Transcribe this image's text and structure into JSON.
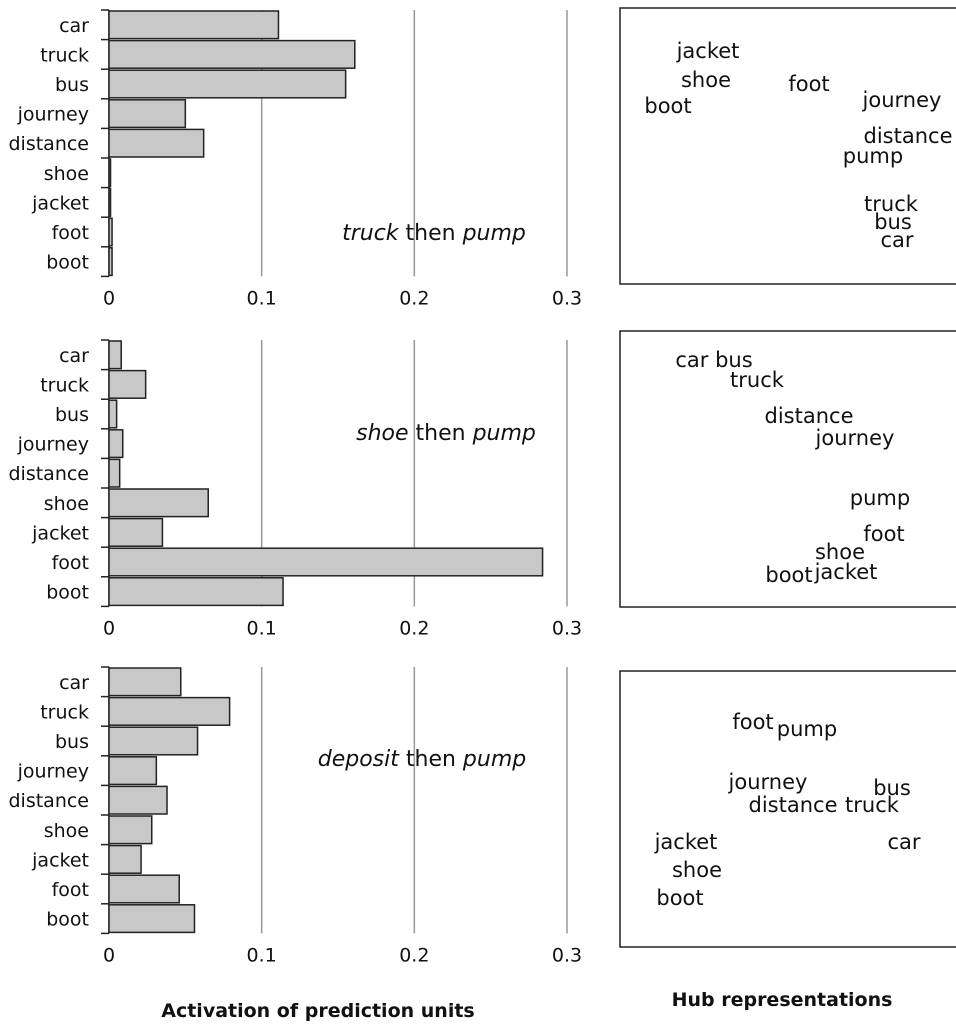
{
  "chart_data": [
    {
      "type": "bar",
      "orientation": "horizontal",
      "annotation": {
        "parts": [
          {
            "text": "truck",
            "italic": true
          },
          {
            "text": " then ",
            "italic": false
          },
          {
            "text": "pump",
            "italic": true
          }
        ]
      },
      "categories": [
        "car",
        "truck",
        "bus",
        "journey",
        "distance",
        "shoe",
        "jacket",
        "foot",
        "boot"
      ],
      "values": [
        0.111,
        0.161,
        0.155,
        0.05,
        0.062,
        0.001,
        0.001,
        0.002,
        0.002
      ],
      "xlim": [
        0,
        0.3
      ],
      "xticks": [
        "0",
        "0.1",
        "0.2",
        "0.3"
      ],
      "grid": "vertical",
      "hub": [
        {
          "text": "jacket",
          "highlight": false
        },
        {
          "text": "shoe",
          "highlight": false
        },
        {
          "text": "boot",
          "highlight": false
        },
        {
          "text": "foot",
          "highlight": false
        },
        {
          "text": "journey",
          "highlight": false
        },
        {
          "text": "distance",
          "highlight": false
        },
        {
          "text": "pump",
          "highlight": true
        },
        {
          "text": "truck",
          "highlight": false
        },
        {
          "text": "bus",
          "highlight": false
        },
        {
          "text": "car",
          "highlight": false
        }
      ]
    },
    {
      "type": "bar",
      "orientation": "horizontal",
      "annotation": {
        "parts": [
          {
            "text": "shoe",
            "italic": true
          },
          {
            "text": " then ",
            "italic": false
          },
          {
            "text": "pump",
            "italic": true
          }
        ]
      },
      "categories": [
        "car",
        "truck",
        "bus",
        "journey",
        "distance",
        "shoe",
        "jacket",
        "foot",
        "boot"
      ],
      "values": [
        0.008,
        0.024,
        0.005,
        0.009,
        0.007,
        0.065,
        0.035,
        0.284,
        0.114
      ],
      "xlim": [
        0,
        0.3
      ],
      "xticks": [
        "0",
        "0.1",
        "0.2",
        "0.3"
      ],
      "grid": "vertical",
      "hub": [
        {
          "text": "car bus",
          "highlight": false
        },
        {
          "text": "truck",
          "highlight": false
        },
        {
          "text": "distance",
          "highlight": false
        },
        {
          "text": "journey",
          "highlight": false
        },
        {
          "text": "pump",
          "highlight": true
        },
        {
          "text": "foot",
          "highlight": false
        },
        {
          "text": "shoe",
          "highlight": false
        },
        {
          "text": "jacket",
          "highlight": false
        },
        {
          "text": "boot",
          "highlight": false
        }
      ]
    },
    {
      "type": "bar",
      "orientation": "horizontal",
      "annotation": {
        "parts": [
          {
            "text": "deposit",
            "italic": true
          },
          {
            "text": " then ",
            "italic": false
          },
          {
            "text": "pump",
            "italic": true
          }
        ]
      },
      "categories": [
        "car",
        "truck",
        "bus",
        "journey",
        "distance",
        "shoe",
        "jacket",
        "foot",
        "boot"
      ],
      "values": [
        0.047,
        0.079,
        0.058,
        0.031,
        0.038,
        0.028,
        0.021,
        0.046,
        0.056
      ],
      "xlim": [
        0,
        0.3
      ],
      "xticks": [
        "0",
        "0.1",
        "0.2",
        "0.3"
      ],
      "grid": "vertical",
      "hub": [
        {
          "text": "foot",
          "highlight": false
        },
        {
          "text": "pump",
          "highlight": true
        },
        {
          "text": "journey",
          "highlight": false
        },
        {
          "text": "bus",
          "highlight": false
        },
        {
          "text": "distance",
          "highlight": false
        },
        {
          "text": "truck",
          "highlight": false
        },
        {
          "text": "jacket",
          "highlight": false
        },
        {
          "text": "car",
          "highlight": false
        },
        {
          "text": "shoe",
          "highlight": false
        },
        {
          "text": "boot",
          "highlight": false
        }
      ]
    }
  ],
  "footer": {
    "left_label": "Activation of prediction units",
    "right_label": "Hub representations"
  },
  "colors": {
    "bar_fill": "#c8c8c8",
    "highlight_word": "#e8312a",
    "normal_word": "#111111"
  }
}
